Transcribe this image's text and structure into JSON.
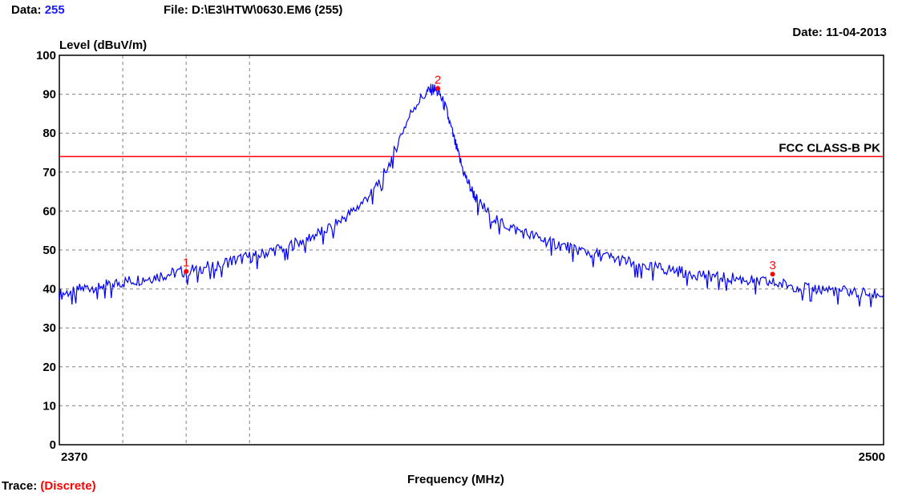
{
  "header": {
    "data_label": "Data:",
    "data_value": "255",
    "file_text": "File: D:\\E3\\HTW\\0630.EM6  (255)",
    "date_text": "Date: 11-04-2013"
  },
  "footer": {
    "trace_label": "Trace:",
    "trace_value": "(Discrete)"
  },
  "colors": {
    "trace": "#0000ff",
    "limit": "#ff0000",
    "marker": "#ff0000",
    "grid": "#808080",
    "header_value": "#1a1aff"
  },
  "chart_data": {
    "type": "line",
    "title": "",
    "xlabel": "Frequency (MHz)",
    "ylabel": "Level (dBuV/m)",
    "xlim": [
      2370,
      2500
    ],
    "ylim": [
      0,
      100
    ],
    "x_tick_labels": [
      "2370",
      "2500"
    ],
    "y_ticks": [
      0,
      10,
      20,
      30,
      40,
      50,
      60,
      70,
      80,
      90,
      100
    ],
    "vertical_gridlines_x": [
      2380,
      2390,
      2400
    ],
    "grid": true,
    "limit_line": {
      "name": "FCC CLASS-B PK",
      "value": 74
    },
    "series": [
      {
        "x": [
          2370,
          2372,
          2374,
          2376,
          2378,
          2380,
          2382,
          2384,
          2386,
          2388,
          2390,
          2392,
          2394,
          2396,
          2398,
          2400,
          2402,
          2404,
          2406,
          2408,
          2410,
          2412,
          2414,
          2416,
          2418,
          2420,
          2422,
          2424,
          2426,
          2428,
          2429,
          2430,
          2431,
          2432,
          2433,
          2434,
          2435,
          2436,
          2438,
          2440,
          2442,
          2444,
          2446,
          2448,
          2450,
          2452,
          2454,
          2456,
          2458,
          2460,
          2462,
          2464,
          2466,
          2468,
          2470,
          2472,
          2474,
          2476,
          2478,
          2480,
          2482,
          2484,
          2486,
          2488,
          2490,
          2492,
          2494,
          2496,
          2498,
          2500
        ],
        "y": [
          38.5,
          39.5,
          40.2,
          40.8,
          41.2,
          41.8,
          42.3,
          42.8,
          43.5,
          44.0,
          44.6,
          45.3,
          46.0,
          46.8,
          47.5,
          48.2,
          49.0,
          50.0,
          51.0,
          52.2,
          53.6,
          55.2,
          57.2,
          59.5,
          62.5,
          66.5,
          72.0,
          80.0,
          87.0,
          90.5,
          91.5,
          90.0,
          86.0,
          80.0,
          74.0,
          69.0,
          65.5,
          62.5,
          59.0,
          56.8,
          55.2,
          54.0,
          52.8,
          51.8,
          50.8,
          50.0,
          49.2,
          48.4,
          47.5,
          46.8,
          46.1,
          45.5,
          45.0,
          44.5,
          44.0,
          43.6,
          43.2,
          42.8,
          42.4,
          42.0,
          41.6,
          41.2,
          40.8,
          40.4,
          40.0,
          39.7,
          39.4,
          39.1,
          38.8,
          38.5
        ]
      }
    ],
    "markers": [
      {
        "label": "1",
        "x": 2390.0,
        "y": 44.5
      },
      {
        "label": "2",
        "x": 2429.7,
        "y": 91.5
      },
      {
        "label": "3",
        "x": 2482.5,
        "y": 43.8
      }
    ]
  }
}
